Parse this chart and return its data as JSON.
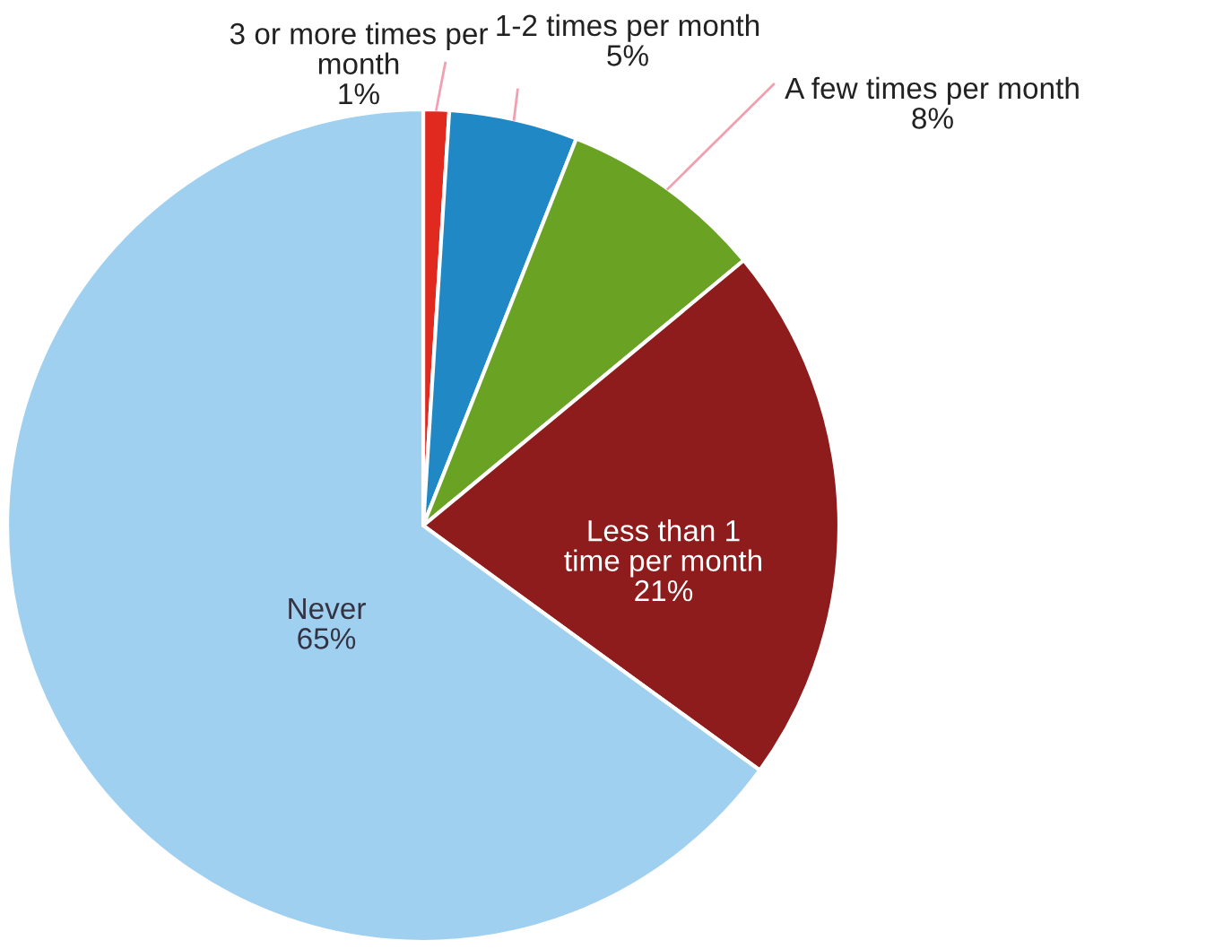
{
  "chart_data": {
    "type": "pie",
    "categories": [
      "3 or more times per month",
      "1-2 times per month",
      "A few times per month",
      "Less than 1 time per month",
      "Never"
    ],
    "values": [
      1,
      5,
      8,
      21,
      65
    ],
    "colors": [
      "#e02a20",
      "#2088c4",
      "#6aa324",
      "#8e1c1c",
      "#a0d0f0"
    ],
    "value_labels": [
      "1%",
      "5%",
      "8%",
      "21%",
      "65%"
    ]
  }
}
